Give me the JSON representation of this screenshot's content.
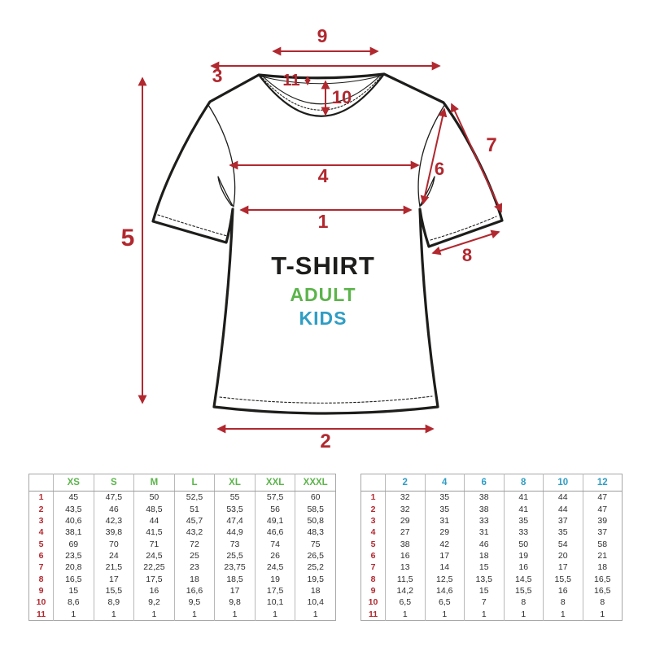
{
  "diagram": {
    "title": "T-SHIRT",
    "subtitle_adult": "ADULT",
    "subtitle_kids": "KIDS",
    "measure_labels": {
      "m1": "1",
      "m2": "2",
      "m3": "3",
      "m4": "4",
      "m5": "5",
      "m6": "6",
      "m7": "7",
      "m8": "8",
      "m9": "9",
      "m10": "10",
      "m11": "11"
    },
    "colors": {
      "accent_red": "#b1282f",
      "adult_green": "#5cb44b",
      "kids_blue": "#2f9dc4",
      "outline_black": "#1d1d1b",
      "table_border_gray": "#a8a8a8"
    }
  },
  "adult_table": {
    "sizes": [
      "XS",
      "S",
      "M",
      "L",
      "XL",
      "XXL",
      "XXXL"
    ],
    "rows": [
      {
        "label": "1",
        "values": [
          "45",
          "47,5",
          "50",
          "52,5",
          "55",
          "57,5",
          "60"
        ]
      },
      {
        "label": "2",
        "values": [
          "43,5",
          "46",
          "48,5",
          "51",
          "53,5",
          "56",
          "58,5"
        ]
      },
      {
        "label": "3",
        "values": [
          "40,6",
          "42,3",
          "44",
          "45,7",
          "47,4",
          "49,1",
          "50,8"
        ]
      },
      {
        "label": "4",
        "values": [
          "38,1",
          "39,8",
          "41,5",
          "43,2",
          "44,9",
          "46,6",
          "48,3"
        ]
      },
      {
        "label": "5",
        "values": [
          "69",
          "70",
          "71",
          "72",
          "73",
          "74",
          "75"
        ]
      },
      {
        "label": "6",
        "values": [
          "23,5",
          "24",
          "24,5",
          "25",
          "25,5",
          "26",
          "26,5"
        ]
      },
      {
        "label": "7",
        "values": [
          "20,8",
          "21,5",
          "22,25",
          "23",
          "23,75",
          "24,5",
          "25,2"
        ]
      },
      {
        "label": "8",
        "values": [
          "16,5",
          "17",
          "17,5",
          "18",
          "18,5",
          "19",
          "19,5"
        ]
      },
      {
        "label": "9",
        "values": [
          "15",
          "15,5",
          "16",
          "16,6",
          "17",
          "17,5",
          "18"
        ]
      },
      {
        "label": "10",
        "values": [
          "8,6",
          "8,9",
          "9,2",
          "9,5",
          "9,8",
          "10,1",
          "10,4"
        ]
      },
      {
        "label": "11",
        "values": [
          "1",
          "1",
          "1",
          "1",
          "1",
          "1",
          "1"
        ]
      }
    ]
  },
  "kids_table": {
    "sizes": [
      "2",
      "4",
      "6",
      "8",
      "10",
      "12"
    ],
    "rows": [
      {
        "label": "1",
        "values": [
          "32",
          "35",
          "38",
          "41",
          "44",
          "47"
        ]
      },
      {
        "label": "2",
        "values": [
          "32",
          "35",
          "38",
          "41",
          "44",
          "47"
        ]
      },
      {
        "label": "3",
        "values": [
          "29",
          "31",
          "33",
          "35",
          "37",
          "39"
        ]
      },
      {
        "label": "4",
        "values": [
          "27",
          "29",
          "31",
          "33",
          "35",
          "37"
        ]
      },
      {
        "label": "5",
        "values": [
          "38",
          "42",
          "46",
          "50",
          "54",
          "58"
        ]
      },
      {
        "label": "6",
        "values": [
          "16",
          "17",
          "18",
          "19",
          "20",
          "21"
        ]
      },
      {
        "label": "7",
        "values": [
          "13",
          "14",
          "15",
          "16",
          "17",
          "18"
        ]
      },
      {
        "label": "8",
        "values": [
          "11,5",
          "12,5",
          "13,5",
          "14,5",
          "15,5",
          "16,5"
        ]
      },
      {
        "label": "9",
        "values": [
          "14,2",
          "14,6",
          "15",
          "15,5",
          "16",
          "16,5"
        ]
      },
      {
        "label": "10",
        "values": [
          "6,5",
          "6,5",
          "7",
          "8",
          "8",
          "8"
        ]
      },
      {
        "label": "11",
        "values": [
          "1",
          "1",
          "1",
          "1",
          "1",
          "1"
        ]
      }
    ]
  }
}
